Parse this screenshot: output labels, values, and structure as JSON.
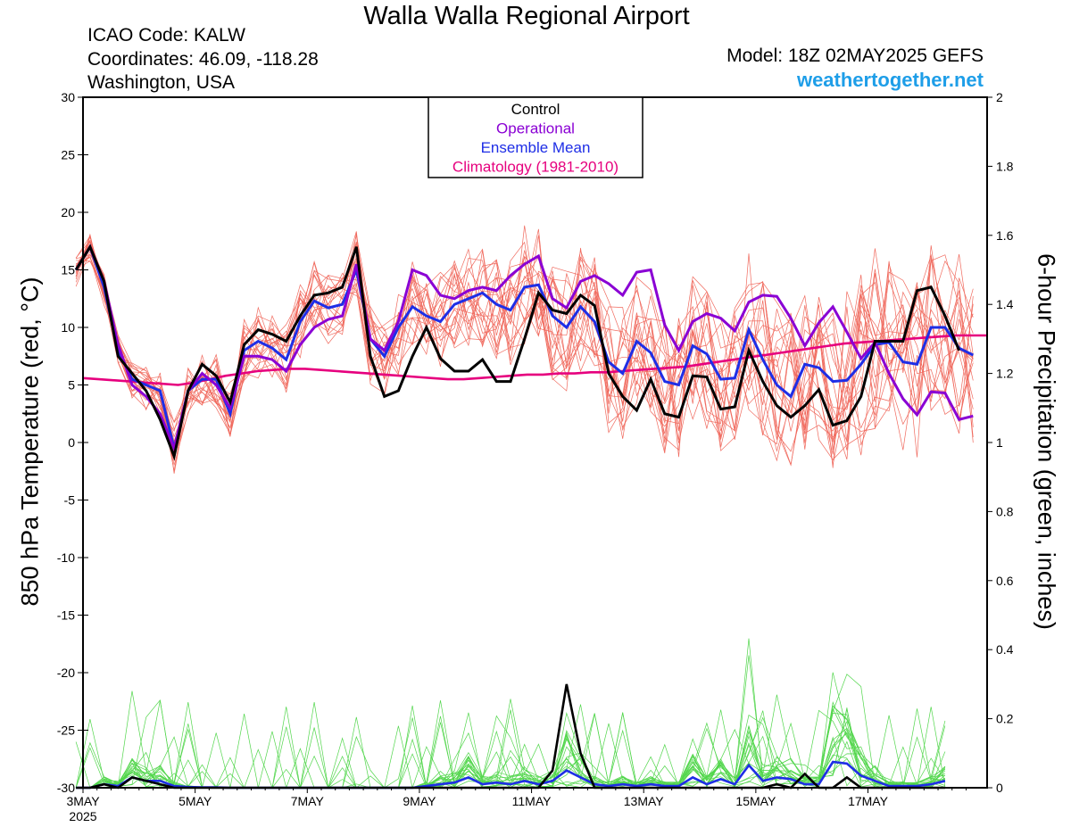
{
  "header": {
    "title": "Walla Walla Regional Airport",
    "icao": "ICAO Code: KALW",
    "coordinates": "Coordinates: 46.09, -118.28",
    "region": "Washington, USA",
    "model": "Model: 18Z 02MAY2025 GEFS",
    "site": "weathertogether.net"
  },
  "axes": {
    "left_label": "850 hPa Temperature (red, °C)",
    "right_label": "6-hour Precipitation (green, inches)"
  },
  "legend": [
    {
      "label": "Control",
      "color": "#000000"
    },
    {
      "label": "Operational",
      "color": "#8a00d4"
    },
    {
      "label": "Ensemble Mean",
      "color": "#1e2ee6"
    },
    {
      "label": "Climatology (1981-2010)",
      "color": "#e6007e"
    }
  ],
  "colors": {
    "member_temp": "#f06a5e",
    "member_precip": "#52d64c",
    "control": "#000000",
    "operational": "#8a00d4",
    "mean": "#1e2ee6",
    "climatology": "#e6007e"
  },
  "chart_data": {
    "type": "line",
    "title": "Walla Walla Regional Airport",
    "x_unit": "6-hour step from 3MAY 00Z",
    "x_tick_labels": [
      {
        "step": 0,
        "label": "3MAY",
        "sub": "2025"
      },
      {
        "step": 8,
        "label": "5MAY"
      },
      {
        "step": 16,
        "label": "7MAY"
      },
      {
        "step": 24,
        "label": "9MAY"
      },
      {
        "step": 32,
        "label": "11MAY"
      },
      {
        "step": 40,
        "label": "13MAY"
      },
      {
        "step": 48,
        "label": "15MAY"
      },
      {
        "step": 56,
        "label": "17MAY"
      }
    ],
    "x_range": [
      0,
      64.5
    ],
    "temp_axis": {
      "label": "850 hPa Temperature (red, °C)",
      "range": [
        -30,
        30
      ],
      "ticks": [
        30,
        25,
        20,
        15,
        10,
        5,
        0,
        -5,
        -10,
        -15,
        -20,
        -25,
        -30
      ]
    },
    "precip_axis": {
      "label": "6-hour Precipitation (green, inches)",
      "range": [
        0,
        2
      ],
      "ticks": [
        "2",
        "1.8",
        "1.6",
        "1.4",
        "1.2",
        "1",
        "0.8",
        "0.6",
        "0.4",
        "0.2",
        "0"
      ]
    },
    "start_step": -0.5,
    "temperature": {
      "control": [
        15,
        17,
        14,
        7.5,
        6,
        4.5,
        2,
        -1.2,
        4.5,
        6.8,
        5.8,
        3.5,
        8.5,
        9.8,
        9.4,
        8.8,
        11,
        12.8,
        13,
        13.5,
        17,
        7.5,
        4,
        4.5,
        7.5,
        10,
        7.3,
        6.2,
        6.2,
        7.2,
        5.3,
        5.3,
        9,
        13,
        11.5,
        11.2,
        12.8,
        11.9,
        6,
        4,
        2.8,
        5.5,
        2.5,
        2.2,
        5.8,
        5.7,
        2.9,
        3.1,
        8,
        5.3,
        3.2,
        2.2,
        3.2,
        4.6,
        1.5,
        1.9,
        4,
        8.8,
        8.8,
        8.8,
        13.2,
        13.5,
        11,
        8
      ],
      "operational": [
        15,
        17,
        14,
        8.5,
        5,
        4,
        2.5,
        -0.5,
        4.5,
        6,
        5,
        3,
        7.5,
        7.5,
        7.2,
        6.2,
        8.5,
        10,
        10.7,
        11,
        15.5,
        9,
        8,
        10.5,
        15,
        14.5,
        12.8,
        12.5,
        13.2,
        13.5,
        13.2,
        14.5,
        15.5,
        16.2,
        12.5,
        11.7,
        14,
        14.5,
        13.8,
        12.8,
        14.8,
        15,
        10.2,
        8,
        10.5,
        11.2,
        10.8,
        9.7,
        12.2,
        12.8,
        12.7,
        10.8,
        8.4,
        10.4,
        11.8,
        9.6,
        7.3,
        8.7,
        6,
        3.8,
        2.4,
        4.4,
        4.3,
        2,
        2.3
      ],
      "mean": [
        15,
        17,
        13.5,
        8,
        5.5,
        5,
        4.5,
        -0.5,
        4.5,
        5.5,
        5.5,
        2.5,
        8,
        8.8,
        8.2,
        7.2,
        10.5,
        12.3,
        11.7,
        12,
        15,
        9,
        7.5,
        10,
        11.8,
        11,
        10.5,
        12,
        12.5,
        13,
        12,
        11.5,
        13.5,
        13.7,
        11,
        10,
        11.8,
        10.5,
        7,
        6,
        8.8,
        7.8,
        5.3,
        5,
        8.4,
        7.7,
        5.5,
        5.6,
        9.8,
        7.2,
        5,
        4,
        6.8,
        6.5,
        5.3,
        5.4,
        6.8,
        8.5,
        8.7,
        7,
        6.8,
        10,
        10,
        8.2,
        7.6
      ],
      "climatology": [
        5.6,
        5.5,
        5.4,
        5.3,
        5.2,
        5.1,
        5,
        5.2,
        5.5,
        5.8,
        6,
        6.2,
        6.3,
        6.4,
        6.4,
        6.3,
        6.2,
        6.1,
        6,
        5.9,
        5.8,
        5.7,
        5.6,
        5.5,
        5.5,
        5.6,
        5.7,
        5.8,
        5.9,
        5.9,
        6,
        6,
        6.1,
        6.1,
        6.2,
        6.3,
        6.4,
        6.5,
        6.6,
        6.8,
        7,
        7.2,
        7.4,
        7.6,
        7.8,
        8,
        8.2,
        8.4,
        8.6,
        8.7,
        8.8,
        8.9,
        9,
        9.1,
        9.2,
        9.3,
        9.3,
        9.3
      ]
    },
    "precipitation": {
      "control": [
        0,
        0,
        0.01,
        0,
        0.03,
        0.02,
        0.01,
        0,
        0,
        0,
        0,
        0,
        0,
        0,
        0,
        0,
        0,
        0,
        0,
        0,
        0,
        0,
        0,
        0,
        0,
        0,
        0,
        0,
        0,
        0,
        0,
        0,
        0,
        0,
        0.05,
        0.3,
        0.1,
        0,
        0,
        0,
        0,
        0,
        0,
        0,
        0,
        0,
        0,
        0,
        0,
        0,
        0.01,
        0,
        0.04,
        0,
        0,
        0.03,
        0,
        0,
        0,
        0,
        0,
        0,
        0
      ],
      "mean": [
        0,
        0,
        0.01,
        0.005,
        0.03,
        0.02,
        0.02,
        0.005,
        0.002,
        0.001,
        0.001,
        0,
        0,
        0,
        0,
        0,
        0,
        0,
        0,
        0,
        0,
        0,
        0,
        0,
        0,
        0.005,
        0.01,
        0.015,
        0.03,
        0.01,
        0.015,
        0.01,
        0.02,
        0.01,
        0.02,
        0.05,
        0.03,
        0.01,
        0.005,
        0.01,
        0.005,
        0.01,
        0.005,
        0.005,
        0.03,
        0.01,
        0.025,
        0.01,
        0.065,
        0.02,
        0.03,
        0.025,
        0.01,
        0.01,
        0.075,
        0.07,
        0.035,
        0.02,
        0.005,
        0.005,
        0.005,
        0.01,
        0.02
      ]
    }
  }
}
